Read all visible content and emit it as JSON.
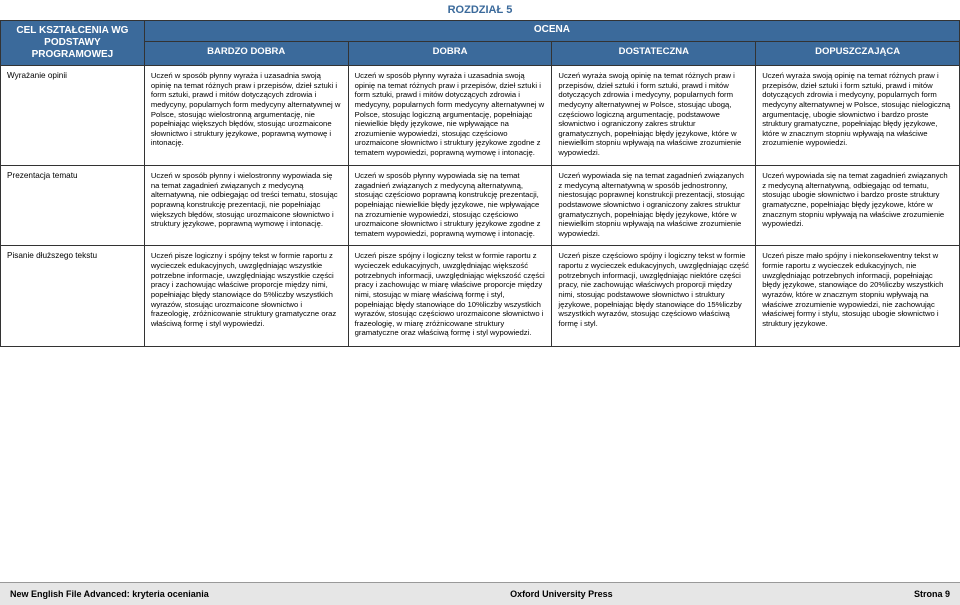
{
  "chapter": "ROZDZIAŁ 5",
  "header": {
    "rowhead": "CEL KSZTAŁCENIA WG PODSTAWY PROGRAMOWEJ",
    "ocena": "OCENA",
    "grades": [
      "BARDZO DOBRA",
      "DOBRA",
      "DOSTATECZNA",
      "DOPUSZCZAJĄCA"
    ]
  },
  "rows": [
    {
      "label": "Wyrażanie opinii",
      "cells": [
        "Uczeń w sposób płynny wyraża i uzasadnia swoją opinię na temat różnych praw i przepisów, dzieł sztuki i form sztuki, prawd i mitów dotyczących zdrowia i medycyny, popularnych form medycyny alternatywnej w Polsce, stosując wielostronną argumentację, nie popełniając większych błędów, stosując urozmaicone słownictwo i struktury językowe, poprawną wymowę i intonację.",
        "Uczeń w sposób płynny wyraża i uzasadnia swoją opinię na temat różnych praw i przepisów, dzieł sztuki i form sztuki, prawd i mitów dotyczących zdrowia i medycyny, popularnych form medycyny alternatywnej w Polsce, stosując logiczną argumentację, popełniając niewielkie błędy językowe, nie wpływające na zrozumienie wypowiedzi, stosując częściowo urozmaicone słownictwo i struktury językowe zgodne z tematem wypowiedzi, poprawną wymowę i intonację.",
        "Uczeń wyraża swoją opinię na temat różnych praw i przepisów, dzieł sztuki i form sztuki, prawd i mitów dotyczących zdrowia i medycyny, popularnych form medycyny alternatywnej w Polsce, stosując ubogą, częściowo logiczną argumentację, podstawowe słownictwo i ograniczony zakres struktur gramatycznych, popełniając błędy językowe, które w niewielkim stopniu wpływają na właściwe zrozumienie wypowiedzi.",
        "Uczeń wyraża swoją opinię na temat różnych praw i przepisów, dzieł sztuki i form sztuki, prawd i mitów dotyczących zdrowia i medycyny, popularnych form medycyny alternatywnej w Polsce, stosując nielogiczną argumentację, ubogie słownictwo i bardzo proste struktury gramatyczne, popełniając błędy językowe, które w znacznym stopniu wpływają na właściwe zrozumienie wypowiedzi."
      ]
    },
    {
      "label": "Prezentacja tematu",
      "cells": [
        "Uczeń w sposób płynny i wielostronny wypowiada się na temat zagadnień związanych z medycyną alternatywną, nie odbiegając od treści tematu, stosując poprawną konstrukcję prezentacji, nie popełniając większych błędów, stosując urozmaicone słownictwo i struktury językowe, poprawną wymowę i intonację.",
        "Uczeń w sposób płynny wypowiada się na temat zagadnień związanych z medycyną alternatywną, stosując częściowo poprawną konstrukcję prezentacji, popełniając niewielkie błędy językowe, nie wpływające na zrozumienie wypowiedzi, stosując częściowo urozmaicone słownictwo i struktury językowe zgodne z tematem wypowiedzi, poprawną wymowę i intonację.",
        "Uczeń wypowiada się na temat zagadnień związanych z medycyną alternatywną w sposób jednostronny, niestosując poprawnej konstrukcji prezentacji, stosując podstawowe słownictwo i ograniczony zakres struktur gramatycznych, popełniając błędy językowe, które w niewielkim stopniu wpływają na właściwe zrozumienie wypowiedzi.",
        "Uczeń wypowiada się na temat zagadnień związanych z medycyną alternatywną, odbiegając od tematu, stosując ubogie słownictwo i bardzo proste struktury gramatyczne, popełniając błędy językowe, które w znacznym stopniu wpływają na właściwe zrozumienie wypowiedzi."
      ]
    },
    {
      "label": "Pisanie dłuższego tekstu",
      "cells": [
        "Uczeń pisze logiczny i spójny tekst w formie raportu z wycieczek edukacyjnych, uwzględniając wszystkie potrzebne informacje, uwzględniając wszystkie części pracy i zachowując właściwe proporcje między nimi, popełniając błędy stanowiące do 5%liczby wszystkich wyrazów, stosując urozmaicone słownictwo i frazeologię, zróżnicowanie struktury gramatyczne oraz właściwą formę i styl wypowiedzi.",
        "Uczeń pisze spójny i logiczny tekst w formie raportu z wycieczek edukacyjnych, uwzględniając większość potrzebnych informacji, uwzględniając większość części pracy i zachowując w miarę właściwe proporcje między nimi, stosując w miarę właściwą formę i styl, popełniając błędy stanowiące do 10%liczby wszystkich wyrazów, stosując częściowo urozmaicone słownictwo i frazeologię, w miarę zróżnicowane struktury gramatyczne oraz właściwą formę i styl wypowiedzi.",
        "Uczeń pisze częściowo spójny i logiczny tekst w formie raportu z wycieczek edukacyjnych, uwzględniając część potrzebnych informacji, uwzględniając niektóre części pracy, nie zachowując właściwych proporcji między nimi, stosując podstawowe słownictwo i struktury językowe, popełniając błędy stanowiące do 15%liczby wszystkich wyrazów, stosując częściowo właściwą formę i styl.",
        "Uczeń pisze mało spójny i niekonsekwentny tekst w formie raportu z wycieczek edukacyjnych, nie uwzględniając potrzebnych informacji, popełniając błędy językowe, stanowiące do 20%liczby wszystkich wyrazów, które w znacznym stopniu wpływają na właściwe zrozumienie wypowiedzi, nie zachowując właściwej formy i stylu, stosując ubogie słownictwo i struktury językowe."
      ]
    }
  ],
  "footer": {
    "left": "New English File Advanced: kryteria oceniania",
    "center": "Oxford University Press",
    "right": "Strona 9"
  },
  "colors": {
    "header_bg": "#3b6a9b",
    "header_fg": "#ffffff",
    "text": "#000000",
    "footer_bg": "#e6e6e6"
  }
}
